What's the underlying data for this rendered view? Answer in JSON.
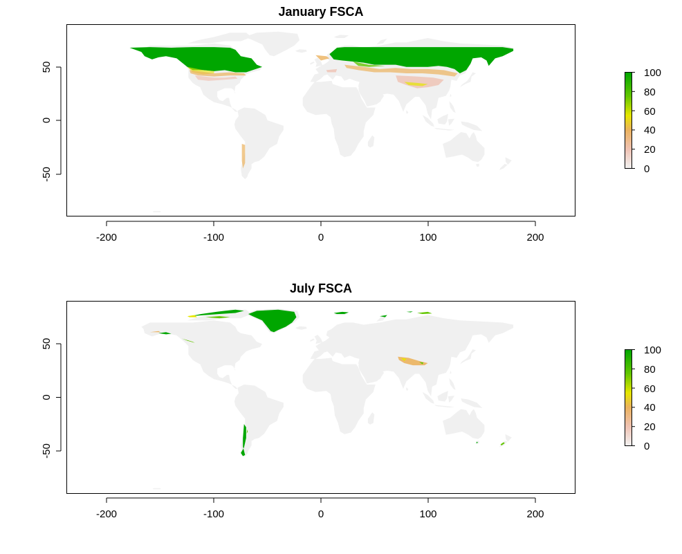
{
  "colors": {
    "ocean": "#ffffff",
    "land_no_snow": "#f0f0f0",
    "frame": "#000000",
    "scale": [
      "#f2f2f2",
      "#efc2b3",
      "#ebb25e",
      "#e6e600",
      "#63c600",
      "#00a600"
    ]
  },
  "chart_data": [
    {
      "type": "heatmap",
      "title": "January FSCA",
      "x_ticks": [
        -200,
        -100,
        0,
        100,
        200
      ],
      "y_ticks": [
        50,
        0,
        -50
      ],
      "xlim": [
        -238,
        238
      ],
      "ylim": [
        -90,
        90
      ],
      "legend": {
        "ticks": [
          0,
          20,
          40,
          60,
          80,
          100
        ],
        "range": [
          0,
          100
        ],
        "placement": "right"
      },
      "grid": false,
      "snow_regions": [
        {
          "name": "North America",
          "lon": [
            -172,
            -52
          ],
          "lat": [
            42,
            68
          ],
          "fsca": 95
        },
        {
          "name": "Eurasia",
          "lon": [
            8,
            180
          ],
          "lat": [
            40,
            68
          ],
          "fsca": 95
        },
        {
          "name": "Central Asia",
          "lon": [
            60,
            130
          ],
          "lat": [
            30,
            50
          ],
          "fsca": 35
        },
        {
          "name": "Southern Andes",
          "lon": [
            -75,
            -68
          ],
          "lat": [
            -40,
            -20
          ],
          "fsca": 25
        }
      ]
    },
    {
      "type": "heatmap",
      "title": "July FSCA",
      "x_ticks": [
        -200,
        -100,
        0,
        100,
        200
      ],
      "y_ticks": [
        50,
        0,
        -50
      ],
      "xlim": [
        -238,
        238
      ],
      "ylim": [
        -90,
        90
      ],
      "legend": {
        "ticks": [
          0,
          20,
          40,
          60,
          80,
          100
        ],
        "range": [
          0,
          100
        ],
        "placement": "right"
      },
      "grid": false,
      "snow_regions": [
        {
          "name": "Greenland",
          "lon": [
            -70,
            -20
          ],
          "lat": [
            60,
            83
          ],
          "fsca": 100
        },
        {
          "name": "Canadian Arctic",
          "lon": [
            -120,
            -70
          ],
          "lat": [
            76,
            82
          ],
          "fsca": 90
        },
        {
          "name": "Alaska coast",
          "lon": [
            -152,
            -140
          ],
          "lat": [
            58,
            62
          ],
          "fsca": 80
        },
        {
          "name": "Tibetan Plateau",
          "lon": [
            75,
            100
          ],
          "lat": [
            28,
            40
          ],
          "fsca": 45
        },
        {
          "name": "Patagonian Andes",
          "lon": [
            -75,
            -70
          ],
          "lat": [
            -55,
            -30
          ],
          "fsca": 100
        },
        {
          "name": "Svalbard",
          "lon": [
            12,
            28
          ],
          "lat": [
            77,
            80
          ],
          "fsca": 85
        },
        {
          "name": "New Zealand Alps",
          "lon": [
            167,
            175
          ],
          "lat": [
            -45,
            -40
          ],
          "fsca": 70
        }
      ]
    }
  ]
}
